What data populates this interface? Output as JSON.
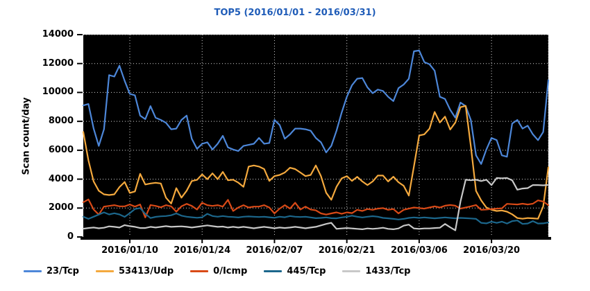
{
  "title_color": "#1f5cb8",
  "chart_data": {
    "type": "line",
    "title": "TOP5 (2016/01/01 - 2016/03/31)",
    "ylabel": "Scan count/day",
    "ylim": [
      0,
      14000
    ],
    "yticks": [
      0,
      2000,
      4000,
      6000,
      8000,
      10000,
      12000,
      14000
    ],
    "x_range": {
      "start": "2016/01/01",
      "end": "2016/03/31",
      "days": 91
    },
    "xticks": [
      {
        "day": 9,
        "label": "2016/01/10"
      },
      {
        "day": 23,
        "label": "2016/01/24"
      },
      {
        "day": 37,
        "label": "2016/02/07"
      },
      {
        "day": 51,
        "label": "2016/02/21"
      },
      {
        "day": 65,
        "label": "2016/03/06"
      },
      {
        "day": 79,
        "label": "2016/03/20"
      }
    ],
    "plot_bg": "#000000",
    "grid_color": "#d9d9d9",
    "grid_style": "dotted",
    "axis_color": "#000000",
    "legend_position": "bottom-left",
    "series": [
      {
        "name": "23/Tcp",
        "color": "#4d87d9",
        "values": [
          9100,
          9200,
          7500,
          6300,
          7450,
          11200,
          11100,
          11850,
          10800,
          9900,
          9800,
          8400,
          8150,
          9050,
          8250,
          8100,
          7900,
          7450,
          7500,
          8100,
          8400,
          6800,
          6100,
          6450,
          6550,
          6050,
          6450,
          7000,
          6200,
          6050,
          5950,
          6300,
          6370,
          6450,
          6850,
          6450,
          6500,
          8100,
          7750,
          6800,
          7100,
          7500,
          7500,
          7450,
          7350,
          6850,
          6550,
          5850,
          6300,
          7350,
          8600,
          9700,
          10500,
          10950,
          11000,
          10350,
          9950,
          10200,
          10100,
          9700,
          9400,
          10300,
          10550,
          10950,
          12850,
          12900,
          12100,
          11950,
          11500,
          9700,
          9550,
          8800,
          8250,
          9300,
          9050,
          8100,
          5650,
          5050,
          6050,
          6850,
          6700,
          5650,
          5550,
          7850,
          8100,
          7500,
          7700,
          7100,
          6700,
          7270,
          10850
        ]
      },
      {
        "name": "53413/Udp",
        "color": "#f4a93e",
        "values": [
          7270,
          5300,
          3840,
          3200,
          2950,
          2900,
          2950,
          3450,
          3800,
          3050,
          3150,
          4370,
          3630,
          3700,
          3750,
          3700,
          2720,
          2310,
          3380,
          2720,
          3200,
          3870,
          3950,
          4330,
          4000,
          4400,
          4000,
          4500,
          3920,
          3960,
          3760,
          3470,
          4870,
          4950,
          4870,
          4700,
          3880,
          4210,
          4290,
          4460,
          4790,
          4700,
          4460,
          4210,
          4290,
          4950,
          4210,
          3060,
          2570,
          3470,
          4050,
          4210,
          3880,
          4160,
          3840,
          3590,
          3840,
          4250,
          4250,
          3840,
          4170,
          3790,
          3540,
          2860,
          4900,
          7020,
          7100,
          7500,
          8650,
          7920,
          8330,
          7430,
          7920,
          8980,
          9070,
          6290,
          3190,
          2530,
          2040,
          1880,
          1800,
          1830,
          1750,
          1570,
          1310,
          1260,
          1310,
          1290,
          1260,
          2120,
          4820
        ]
      },
      {
        "name": "0/Icmp",
        "color": "#d94a17",
        "values": [
          2400,
          2600,
          1900,
          1550,
          2100,
          2150,
          2200,
          2120,
          2120,
          2250,
          2100,
          2250,
          1350,
          2210,
          2150,
          2050,
          2200,
          2120,
          1750,
          2120,
          2290,
          2150,
          1900,
          2370,
          2200,
          2150,
          2200,
          2100,
          2570,
          1800,
          2040,
          2200,
          2040,
          2100,
          2100,
          2200,
          2040,
          1630,
          1960,
          2200,
          1960,
          2370,
          1900,
          2100,
          1900,
          1840,
          1630,
          1550,
          1630,
          1700,
          1600,
          1700,
          1650,
          1880,
          1800,
          1930,
          1880,
          1960,
          2000,
          1880,
          1930,
          1630,
          1880,
          1960,
          2040,
          2000,
          1960,
          2040,
          2120,
          2040,
          2160,
          2210,
          2160,
          1960,
          2040,
          2120,
          2210,
          1880,
          1900,
          1930,
          1960,
          1980,
          2290,
          2270,
          2250,
          2300,
          2250,
          2300,
          2530,
          2450,
          2200
        ]
      },
      {
        "name": "445/Tcp",
        "color": "#1c678c",
        "values": [
          1400,
          1250,
          1400,
          1550,
          1700,
          1560,
          1640,
          1560,
          1390,
          1650,
          1930,
          2000,
          1600,
          1310,
          1390,
          1430,
          1450,
          1500,
          1630,
          1470,
          1400,
          1360,
          1330,
          1360,
          1600,
          1450,
          1400,
          1450,
          1400,
          1380,
          1350,
          1400,
          1420,
          1400,
          1380,
          1400,
          1360,
          1330,
          1400,
          1360,
          1450,
          1400,
          1380,
          1400,
          1350,
          1300,
          1320,
          1350,
          1300,
          1290,
          1350,
          1400,
          1470,
          1400,
          1350,
          1400,
          1440,
          1400,
          1320,
          1290,
          1250,
          1210,
          1250,
          1320,
          1350,
          1320,
          1350,
          1320,
          1290,
          1320,
          1350,
          1320,
          1290,
          1320,
          1300,
          1280,
          1250,
          980,
          940,
          1060,
          975,
          1060,
          930,
          1100,
          1140,
          900,
          930,
          1100,
          930,
          940,
          1000
        ]
      },
      {
        "name": "1433/Tcp",
        "color": "#c8c8c8",
        "values": [
          570,
          620,
          650,
          600,
          640,
          735,
          700,
          650,
          820,
          750,
          700,
          620,
          620,
          700,
          650,
          700,
          750,
          700,
          720,
          735,
          700,
          650,
          700,
          750,
          800,
          750,
          700,
          720,
          650,
          700,
          650,
          700,
          650,
          600,
          650,
          700,
          650,
          600,
          650,
          620,
          650,
          700,
          650,
          600,
          650,
          700,
          800,
          900,
          980,
          560,
          590,
          620,
          590,
          560,
          530,
          590,
          560,
          590,
          640,
          560,
          530,
          590,
          780,
          855,
          590,
          560,
          590,
          590,
          620,
          640,
          900,
          665,
          460,
          2450,
          3960,
          3920,
          3960,
          3870,
          3960,
          3590,
          4080,
          4060,
          4080,
          3920,
          3270,
          3350,
          3380,
          3590,
          3590,
          3570,
          3600
        ]
      }
    ]
  }
}
